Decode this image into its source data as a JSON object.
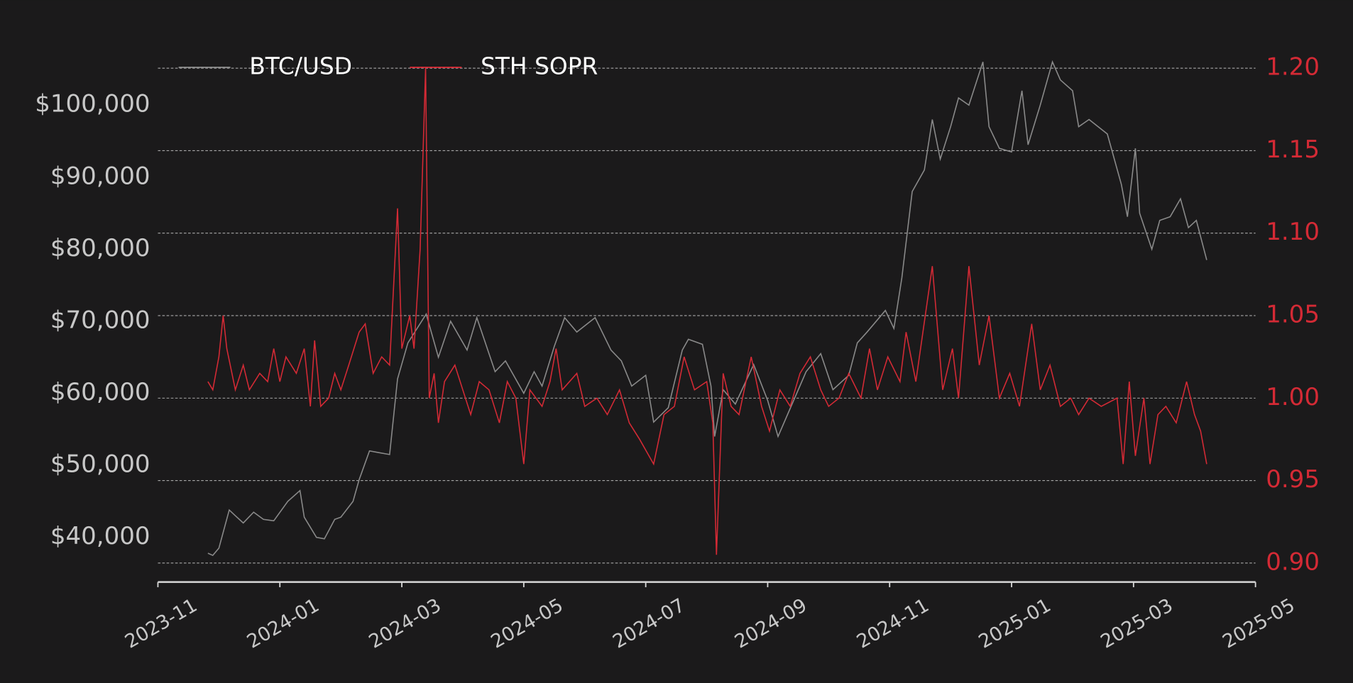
{
  "chart_data": {
    "type": "line",
    "legend": "upper left",
    "grid": true,
    "background": "#1b1a1b",
    "xlim": [
      0,
      18
    ],
    "xticks": [
      {
        "value": 0,
        "label": "2023-11"
      },
      {
        "value": 2,
        "label": "2024-01"
      },
      {
        "value": 4,
        "label": "2024-03"
      },
      {
        "value": 6,
        "label": "2024-05"
      },
      {
        "value": 8,
        "label": "2024-07"
      },
      {
        "value": 10,
        "label": "2024-09"
      },
      {
        "value": 12,
        "label": "2024-11"
      },
      {
        "value": 14,
        "label": "2025-01"
      },
      {
        "value": 16,
        "label": "2025-03"
      },
      {
        "value": 18,
        "label": "2025-05"
      }
    ],
    "ylim": [
      33800,
      106800
    ],
    "yticks": [
      {
        "value": 40000,
        "label": "$40,000"
      },
      {
        "value": 50000,
        "label": "$50,000"
      },
      {
        "value": 60000,
        "label": "$60,000"
      },
      {
        "value": 70000,
        "label": "$70,000"
      },
      {
        "value": 80000,
        "label": "$80,000"
      },
      {
        "value": 90000,
        "label": "$90,000"
      },
      {
        "value": 100000,
        "label": "$100,000"
      }
    ],
    "y2lim": [
      0.8885,
      1.2073
    ],
    "y2ticks": [
      {
        "value": 0.9,
        "label": "0.90"
      },
      {
        "value": 0.95,
        "label": "0.95"
      },
      {
        "value": 1.0,
        "label": "1.00"
      },
      1.05,
      {
        "value": 1.1,
        "label": "1.10"
      },
      1.15,
      {
        "value": 1.2,
        "label": "1.20"
      }
    ],
    "series": [
      {
        "name": "BTC/USD",
        "color": "#8a8a8a",
        "axis": "y",
        "x": [
          0.82,
          0.9,
          1.0,
          1.17,
          1.27,
          1.4,
          1.57,
          1.73,
          1.9,
          2.13,
          2.33,
          2.4,
          2.6,
          2.73,
          2.9,
          3.0,
          3.2,
          3.3,
          3.47,
          3.6,
          3.8,
          3.93,
          4.1,
          4.4,
          4.6,
          4.8,
          5.07,
          5.23,
          5.53,
          5.7,
          6.0,
          6.17,
          6.3,
          6.5,
          6.67,
          6.87,
          7.17,
          7.43,
          7.6,
          7.77,
          8.0,
          8.13,
          8.37,
          8.6,
          8.7,
          8.93,
          9.07,
          9.13,
          9.27,
          9.47,
          9.77,
          10.0,
          10.17,
          10.4,
          10.63,
          10.87,
          11.07,
          11.33,
          11.47,
          11.63,
          11.93,
          12.07,
          12.2,
          12.37,
          12.57,
          12.7,
          12.83,
          13.0,
          13.13,
          13.3,
          13.53,
          13.63,
          13.8,
          14.0,
          14.17,
          14.27,
          14.47,
          14.67,
          14.8,
          15.0,
          15.1,
          15.27,
          15.57,
          15.8,
          15.9,
          16.03,
          16.1,
          16.3,
          16.43,
          16.6,
          16.77,
          16.9,
          17.03,
          17.2
        ],
        "values": [
          37800,
          37500,
          38500,
          43800,
          43000,
          42000,
          43500,
          42500,
          42300,
          45000,
          46500,
          42800,
          40000,
          39800,
          42500,
          42800,
          45000,
          48000,
          52000,
          51800,
          51500,
          62000,
          67000,
          71000,
          65000,
          70000,
          66000,
          70500,
          63000,
          64500,
          60000,
          63000,
          61000,
          66500,
          70500,
          68500,
          70500,
          66000,
          64500,
          61000,
          62500,
          56000,
          58000,
          66000,
          67500,
          66800,
          61000,
          54000,
          60500,
          58500,
          64000,
          59000,
          54000,
          58500,
          63000,
          65500,
          60500,
          62500,
          67000,
          68500,
          71500,
          69000,
          76000,
          88000,
          91000,
          98000,
          92500,
          97000,
          101000,
          100000,
          106000,
          97000,
          94000,
          93500,
          102000,
          94500,
          100000,
          106000,
          103500,
          102000,
          97000,
          98000,
          96000,
          89000,
          84500,
          94000,
          85000,
          80000,
          84000,
          84500,
          87000,
          83000,
          84000,
          78500
        ]
      },
      {
        "name": "STH SOPR",
        "color": "#d42a35",
        "axis": "y2",
        "x": [
          0.82,
          0.9,
          1.0,
          1.07,
          1.13,
          1.27,
          1.4,
          1.5,
          1.67,
          1.8,
          1.9,
          2.0,
          2.1,
          2.27,
          2.4,
          2.5,
          2.57,
          2.67,
          2.8,
          2.9,
          3.0,
          3.13,
          3.3,
          3.4,
          3.53,
          3.67,
          3.8,
          3.93,
          4.0,
          4.13,
          4.2,
          4.3,
          4.39,
          4.45,
          4.53,
          4.6,
          4.7,
          4.87,
          5.0,
          5.13,
          5.27,
          5.43,
          5.6,
          5.73,
          5.87,
          6.0,
          6.1,
          6.3,
          6.43,
          6.53,
          6.63,
          6.87,
          7.0,
          7.2,
          7.37,
          7.57,
          7.73,
          7.9,
          8.13,
          8.3,
          8.47,
          8.63,
          8.8,
          9.0,
          9.1,
          9.16,
          9.27,
          9.4,
          9.53,
          9.73,
          9.9,
          10.03,
          10.2,
          10.37,
          10.53,
          10.7,
          10.87,
          11.0,
          11.17,
          11.33,
          11.53,
          11.67,
          11.8,
          11.97,
          12.17,
          12.27,
          12.43,
          12.7,
          12.87,
          13.03,
          13.13,
          13.3,
          13.47,
          13.63,
          13.8,
          13.97,
          14.13,
          14.33,
          14.47,
          14.63,
          14.8,
          14.97,
          15.1,
          15.27,
          15.47,
          15.73,
          15.83,
          15.93,
          16.03,
          16.17,
          16.27,
          16.4,
          16.53,
          16.7,
          16.87,
          17.0,
          17.1,
          17.2
        ],
        "values": [
          1.01,
          1.005,
          1.025,
          1.05,
          1.03,
          1.005,
          1.02,
          1.005,
          1.015,
          1.01,
          1.03,
          1.01,
          1.025,
          1.015,
          1.03,
          0.995,
          1.035,
          0.995,
          1.0,
          1.015,
          1.005,
          1.02,
          1.04,
          1.045,
          1.015,
          1.025,
          1.02,
          1.115,
          1.03,
          1.05,
          1.03,
          1.09,
          1.2,
          1.0,
          1.015,
          0.985,
          1.01,
          1.02,
          1.005,
          0.99,
          1.01,
          1.005,
          0.985,
          1.01,
          1.0,
          0.96,
          1.005,
          0.995,
          1.01,
          1.03,
          1.005,
          1.015,
          0.995,
          1.0,
          0.99,
          1.005,
          0.985,
          0.975,
          0.96,
          0.99,
          0.995,
          1.025,
          1.005,
          1.01,
          0.985,
          0.905,
          1.015,
          0.995,
          0.99,
          1.025,
          0.995,
          0.98,
          1.005,
          0.995,
          1.015,
          1.025,
          1.005,
          0.995,
          1.0,
          1.015,
          1.0,
          1.03,
          1.005,
          1.025,
          1.01,
          1.04,
          1.01,
          1.08,
          1.005,
          1.03,
          1.0,
          1.08,
          1.02,
          1.05,
          1.0,
          1.015,
          0.995,
          1.045,
          1.005,
          1.02,
          0.995,
          1.0,
          0.99,
          1.0,
          0.995,
          1.0,
          0.96,
          1.01,
          0.965,
          1.0,
          0.96,
          0.99,
          0.995,
          0.985,
          1.01,
          0.99,
          0.98,
          0.96
        ]
      }
    ]
  }
}
